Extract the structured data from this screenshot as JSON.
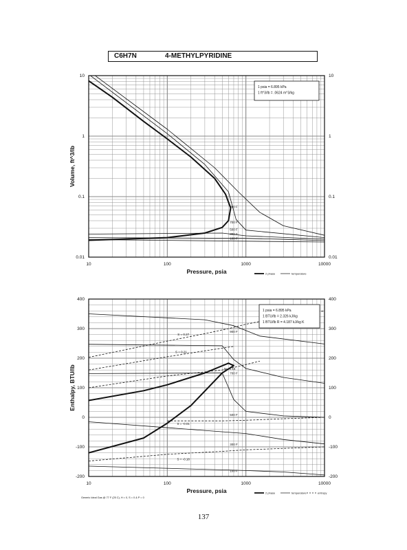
{
  "header": {
    "formula": "C6H7N",
    "name": "4-METHYLPYRIDINE"
  },
  "page_number": "137",
  "chart_data": [
    {
      "type": "line",
      "xlabel": "Pressure,  psia",
      "ylabel": "Volume, ft^3/lb",
      "x_scale": "log",
      "y_scale": "log",
      "xlim": [
        10,
        10000
      ],
      "ylim": [
        0.01,
        10
      ],
      "x_ticks": [
        "10",
        "100",
        "1000",
        "10000"
      ],
      "y_ticks": [
        "0.01",
        "0.1",
        "1",
        "10"
      ],
      "grid": true,
      "info_box": [
        "1 psia = 6.895 kPa",
        "1 ft^3/lb = .0624 m^3/kg"
      ],
      "legend": [
        "2 phase",
        "temperature"
      ],
      "legend_position": "below-right",
      "series": [
        {
          "name": "2 phase",
          "style": "bold",
          "points": [
            [
              10,
              8.2
            ],
            [
              20,
              4.4
            ],
            [
              50,
              1.75
            ],
            [
              100,
              0.9
            ],
            [
              200,
              0.45
            ],
            [
              400,
              0.2
            ],
            [
              550,
              0.11
            ],
            [
              640,
              0.065
            ],
            [
              600,
              0.04
            ],
            [
              500,
              0.031
            ],
            [
              300,
              0.025
            ],
            [
              100,
              0.021
            ],
            [
              10,
              0.019
            ]
          ]
        },
        {
          "name": "100 F",
          "points": [
            [
              10,
              0.0195
            ],
            [
              10000,
              0.0178
            ]
          ]
        },
        {
          "name": "300 F",
          "points": [
            [
              10,
              0.021
            ],
            [
              1000,
              0.0205
            ],
            [
              10000,
              0.0188
            ]
          ]
        },
        {
          "name": "500 F",
          "points": [
            [
              10,
              0.024
            ],
            [
              500,
              0.025
            ],
            [
              1000,
              0.0225
            ],
            [
              10000,
              0.0198
            ]
          ]
        },
        {
          "name": "700 F",
          "points": [
            [
              10,
              10.5
            ],
            [
              100,
              1.1
            ],
            [
              300,
              0.34
            ],
            [
              600,
              0.12
            ],
            [
              750,
              0.042
            ],
            [
              1000,
              0.028
            ],
            [
              10000,
              0.021
            ]
          ]
        },
        {
          "name": "900 F",
          "points": [
            [
              10,
              12
            ],
            [
              100,
              1.3
            ],
            [
              400,
              0.3
            ],
            [
              800,
              0.12
            ],
            [
              1500,
              0.055
            ],
            [
              3000,
              0.033
            ],
            [
              10000,
              0.023
            ]
          ]
        }
      ],
      "annotations": [
        "900 F",
        "700 F",
        "500 F",
        "300 F",
        "100 F"
      ]
    },
    {
      "type": "line",
      "xlabel": "Pressure,  psia",
      "ylabel": "Enthalpy, BTU/lb",
      "x_scale": "log",
      "y_scale": "linear",
      "xlim": [
        10,
        10000
      ],
      "ylim": [
        -200,
        400
      ],
      "x_ticks": [
        "10",
        "100",
        "1000",
        "10000"
      ],
      "y_ticks": [
        "-200",
        "-100",
        "0",
        "100",
        "200",
        "300",
        "400"
      ],
      "grid": true,
      "info_box": [
        "1 psia = 6.895 kPa",
        "1 BTU/lb = 2.326 kJ/kg",
        "1 BTU/lb R = 4.187 kJ/kg K"
      ],
      "legend": [
        "2 phase",
        "temperature",
        "entropy"
      ],
      "legend_position": "below-right",
      "footnote": "Generic Ideal Gas @ 77 F (25 C), H = 0, S = 0 & P = 0",
      "series": [
        {
          "name": "2 phase",
          "style": "bold",
          "points": [
            [
              10,
              57
            ],
            [
              50,
              90
            ],
            [
              100,
              110
            ],
            [
              300,
              150
            ],
            [
              600,
              183
            ],
            [
              700,
              175
            ],
            [
              500,
              150
            ],
            [
              200,
              40
            ],
            [
              100,
              -20
            ],
            [
              50,
              -70
            ],
            [
              10,
              -120
            ]
          ]
        },
        {
          "name": "900 F",
          "points": [
            [
              10,
              350
            ],
            [
              300,
              330
            ],
            [
              700,
              310
            ],
            [
              1500,
              275
            ],
            [
              10000,
              248
            ]
          ]
        },
        {
          "name": "700 F",
          "points": [
            [
              10,
              247
            ],
            [
              500,
              242
            ],
            [
              700,
              195
            ],
            [
              1000,
              165
            ],
            [
              3000,
              135
            ],
            [
              10000,
              115
            ]
          ]
        },
        {
          "name": "500 F",
          "points": [
            [
              10,
              148
            ],
            [
              500,
              150
            ],
            [
              700,
              60
            ],
            [
              1000,
              20
            ],
            [
              3000,
              5
            ],
            [
              10000,
              0
            ]
          ]
        },
        {
          "name": "300 F",
          "points": [
            [
              10,
              -15
            ],
            [
              1000,
              -55
            ],
            [
              3000,
              -75
            ],
            [
              10000,
              -90
            ]
          ]
        },
        {
          "name": "100 F",
          "points": [
            [
              10,
              -165
            ],
            [
              1000,
              -180
            ],
            [
              3000,
              -185
            ],
            [
              10000,
              -195
            ]
          ]
        },
        {
          "name": "S = 0.27",
          "style": "dashed",
          "points": [
            [
              10,
              203
            ],
            [
              100,
              258
            ],
            [
              300,
              283
            ],
            [
              600,
              300
            ],
            [
              1000,
              315
            ],
            [
              3000,
              340
            ],
            [
              10000,
              360
            ]
          ]
        },
        {
          "name": "S = 0.21",
          "style": "dashed",
          "points": [
            [
              10,
              160
            ],
            [
              100,
              205
            ],
            [
              300,
              225
            ],
            [
              700,
              240
            ]
          ]
        },
        {
          "name": "S = 0.15",
          "style": "dashed",
          "points": [
            [
              10,
              100
            ],
            [
              100,
              140
            ],
            [
              500,
              160
            ],
            [
              800,
              172
            ],
            [
              1500,
              190
            ]
          ]
        },
        {
          "name": "S = -0.01",
          "style": "dashed",
          "points": [
            [
              100,
              -12
            ],
            [
              500,
              -12
            ],
            [
              1000,
              -10
            ],
            [
              3000,
              -5
            ],
            [
              10000,
              0
            ]
          ]
        },
        {
          "name": "S = -0.18",
          "style": "dashed",
          "points": [
            [
              10,
              -148
            ],
            [
              100,
              -125
            ],
            [
              500,
              -115
            ],
            [
              1000,
              -110
            ],
            [
              10000,
              -100
            ]
          ]
        }
      ],
      "annotations": [
        "900 F",
        "700 F",
        "500 F",
        "300 F",
        "100 F",
        "S = 0.27",
        "S = 0.21",
        "S = 0.15",
        "S = -0.01",
        "S = -0.18"
      ]
    }
  ]
}
